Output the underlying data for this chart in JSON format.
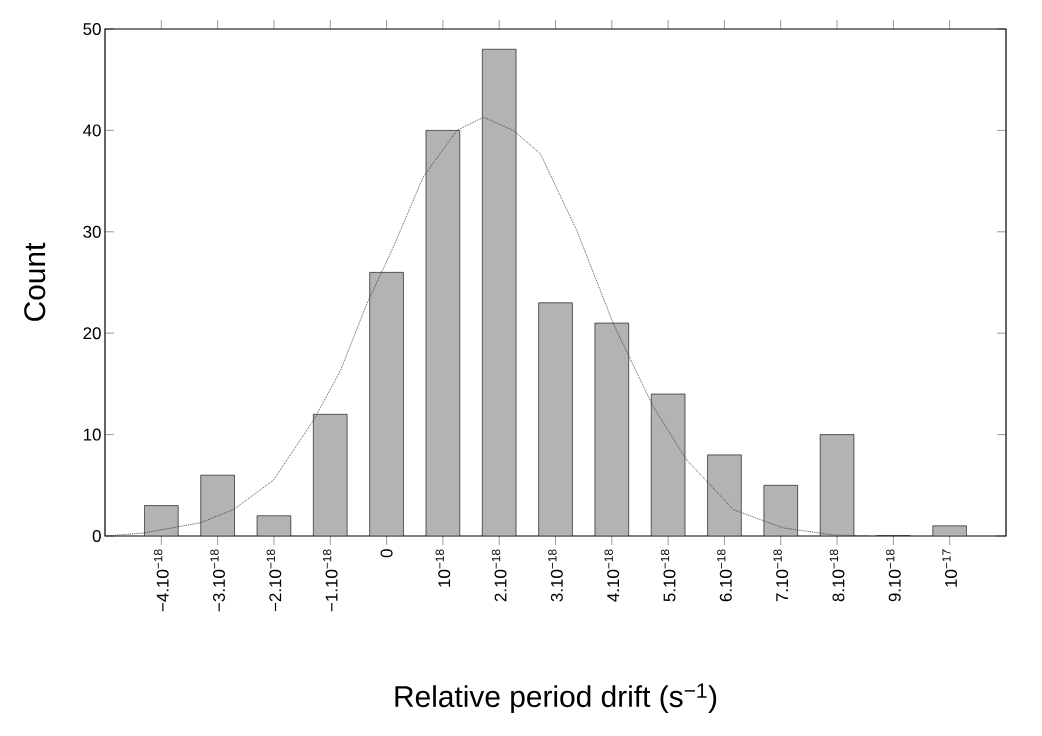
{
  "chart_data": {
    "type": "bar",
    "xlabel": "Relative period drift (s$^{−1}$)",
    "ylabel": "Count",
    "xlim": [
      -5e-18,
      1.1e-17
    ],
    "ylim": [
      0,
      50
    ],
    "xticks": [
      {
        "value": -4e-18,
        "label": "−4.10$^{−18}$"
      },
      {
        "value": -3e-18,
        "label": "−3.10$^{−18}$"
      },
      {
        "value": -2e-18,
        "label": "−2.10$^{−18}$"
      },
      {
        "value": -1e-18,
        "label": "−1.10$^{−18}$"
      },
      0,
      {
        "value": 1e-18,
        "label": "10$^{−18}$"
      },
      {
        "value": 2e-18,
        "label": "2.10$^{−18}$"
      },
      {
        "value": 3e-18,
        "label": "3.10$^{−18}$"
      },
      {
        "value": 4e-18,
        "label": "4.10$^{−18}$"
      },
      {
        "value": 5e-18,
        "label": "5.10$^{−18}$"
      },
      {
        "value": 6e-18,
        "label": "6.10$^{−18}$"
      },
      {
        "value": 7e-18,
        "label": "7.10$^{−18}$"
      },
      {
        "value": 8e-18,
        "label": "8.10$^{−18}$"
      },
      {
        "value": 9e-18,
        "label": "9.10$^{−18}$"
      },
      {
        "value": 1e-17,
        "label": "10$^{−17}$"
      }
    ],
    "yticks": [
      0,
      10,
      20,
      30,
      40,
      50
    ],
    "series": [
      {
        "color": "#b3b3b3",
        "x": [
          -4e-18,
          -3e-18,
          -2e-18,
          -1e-18,
          0,
          1e-18,
          2e-18,
          3e-18,
          4e-18,
          5e-18,
          6e-18,
          7e-18,
          8e-18,
          9e-18,
          1e-17
        ],
        "values": [
          3,
          6,
          2,
          12,
          26,
          40,
          48,
          23,
          21,
          14,
          8,
          5,
          10,
          0,
          1
        ]
      },
      {
        "type": "line",
        "color": "#333333",
        "line_style": "dotted",
        "marker": "none",
        "x": [
          -4.99e-18,
          -4.31e-18,
          -3.31e-18,
          -2.72e-18,
          -2.01e-18,
          -1.3e-18,
          -8.2e-19,
          -3.5e-19,
          1.2e-19,
          6.5e-19,
          1.25e-18,
          1.72e-18,
          2.25e-18,
          2.73e-18,
          3.38e-18,
          4.03e-18,
          4.74e-18,
          5.33e-18,
          6.16e-18,
          7.04e-18,
          7.93e-18,
          8.58e-18
        ],
        "values": [
          0,
          0.3,
          1.3,
          2.6,
          5.5,
          11.4,
          16.3,
          22.9,
          28.5,
          35.4,
          40,
          41.3,
          40,
          37.7,
          30.1,
          20.9,
          12.7,
          7.5,
          2.6,
          0.8,
          0.1,
          0
        ]
      }
    ]
  }
}
